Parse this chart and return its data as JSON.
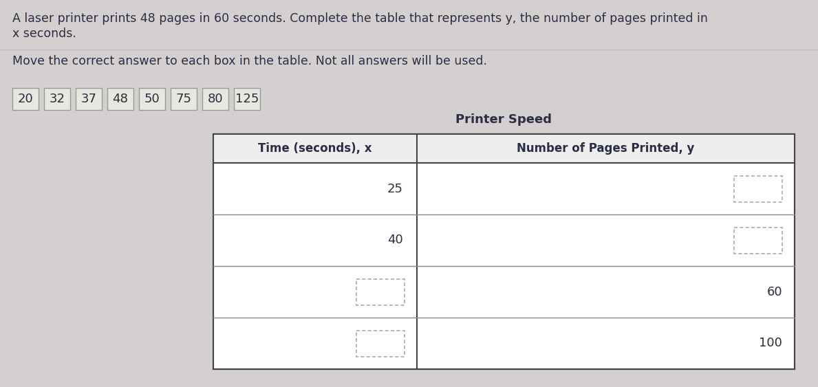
{
  "background_color": "#d4d0d0",
  "title_text1": "A laser printer prints 48 pages in 60 seconds. Complete the table that represents y, the number of pages printed in",
  "title_text2": "x seconds.",
  "subtitle_text": "Move the correct answer to each box in the table. Not all answers will be used.",
  "answer_choices": [
    "20",
    "32",
    "37",
    "48",
    "50",
    "75",
    "80",
    "125"
  ],
  "table_title": "Printer Speed",
  "col1_header": "Time (seconds), x",
  "col2_header": "Number of Pages Printed, y",
  "rows": [
    {
      "x_val": "25",
      "x_align": "right",
      "y_val": "blank_right",
      "y_align": "right"
    },
    {
      "x_val": "40",
      "x_align": "right",
      "y_val": "blank_right",
      "y_align": "right"
    },
    {
      "x_val": "blank_left",
      "x_align": "left",
      "y_val": "60",
      "y_align": "right"
    },
    {
      "x_val": "blank_left",
      "x_align": "left",
      "y_val": "100",
      "y_align": "right"
    }
  ],
  "text_color": "#2b2d42",
  "table_bg": "#f5f5f5",
  "header_bg": "#f0f0f0",
  "dotted_color": "#aaaaaa",
  "title_fontsize": 12.5,
  "subtitle_fontsize": 12.5,
  "answer_fontsize": 13,
  "header_fontsize": 12,
  "cell_fontsize": 12,
  "table_title_fontsize": 13
}
